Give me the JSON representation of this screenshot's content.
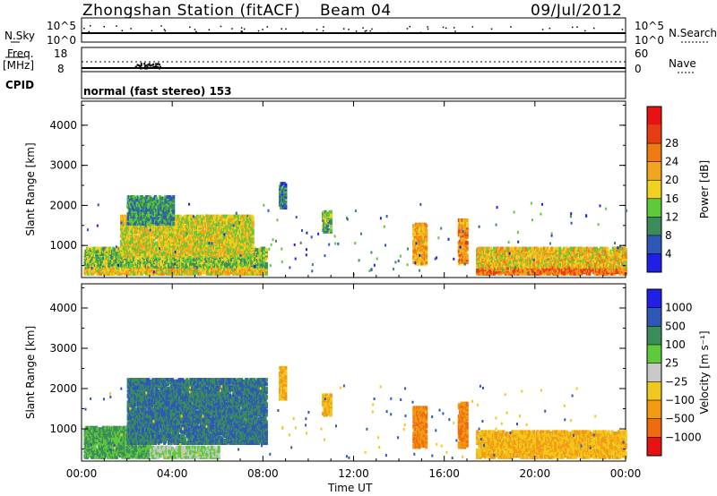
{
  "header": {
    "station": "Zhongshan Station (fitACF)",
    "beam": "Beam 04",
    "date": "09/Jul/2012"
  },
  "panels": {
    "nsky_label": "N.Sky",
    "nsky_ticks": [
      "10^5",
      "10^0"
    ],
    "nsearch_label": "N.Search",
    "nsearch_ticks": [
      "10^5",
      "10^0"
    ],
    "freq_label": "Freq.",
    "freq_unit": "[MHz]",
    "freq_ticks": [
      "18",
      "8"
    ],
    "nave_label": "Nave",
    "nave_ticks": [
      "60",
      "0"
    ],
    "cpid_label": "CPID",
    "cpid_text": "normal (fast stereo) 153"
  },
  "colors": {
    "power_scale": [
      "#1f1fe8",
      "#2e58b8",
      "#3a8c5a",
      "#5ec93a",
      "#f2d21f",
      "#f2a51f",
      "#f07a12",
      "#e83c12",
      "#e81212"
    ],
    "velocity_scale": [
      "#1f1fe8",
      "#2e58b8",
      "#3a8c5a",
      "#5ec93a",
      "#c8c8c8",
      "#f2c81f",
      "#f29b12",
      "#f06a12",
      "#e81212"
    ]
  },
  "chart_data": [
    {
      "type": "heatmap",
      "ylabel": "Slant Range [km]",
      "xlabel": "Time UT",
      "x_ticks": [
        "00:00",
        "04:00",
        "08:00",
        "12:00",
        "16:00",
        "20:00",
        "00:00"
      ],
      "y_ticks": [
        "1000",
        "2000",
        "3000",
        "4000"
      ],
      "xlim_hours": [
        0,
        24
      ],
      "ylim_km": [
        200,
        4600
      ],
      "colorbar": {
        "label": "Power [dB]",
        "ticks": [
          "4",
          "8",
          "12",
          "16",
          "20",
          "24",
          "28"
        ]
      },
      "regions": [
        {
          "t0": 0.1,
          "t1": 8.1,
          "r0": 250,
          "r1": 900,
          "val": 14
        },
        {
          "t0": 1.7,
          "t1": 7.5,
          "r0": 700,
          "r1": 1700,
          "val": 18
        },
        {
          "t0": 2.0,
          "t1": 4.0,
          "r0": 1500,
          "r1": 2200,
          "val": 10
        },
        {
          "t0": 8.7,
          "t1": 9.0,
          "r0": 1900,
          "r1": 2500,
          "val": 8
        },
        {
          "t0": 10.6,
          "t1": 11.0,
          "r0": 1300,
          "r1": 1800,
          "val": 12
        },
        {
          "t0": 14.6,
          "t1": 15.2,
          "r0": 500,
          "r1": 1500,
          "val": 22
        },
        {
          "t0": 16.6,
          "t1": 17.0,
          "r0": 500,
          "r1": 1600,
          "val": 24
        },
        {
          "t0": 17.4,
          "t1": 24.0,
          "r0": 250,
          "r1": 900,
          "val": 20
        }
      ]
    },
    {
      "type": "heatmap",
      "ylabel": "Slant Range [km]",
      "xlabel": "Time UT",
      "x_ticks": [
        "00:00",
        "04:00",
        "08:00",
        "12:00",
        "16:00",
        "20:00",
        "00:00"
      ],
      "y_ticks": [
        "1000",
        "2000",
        "3000",
        "4000"
      ],
      "xlim_hours": [
        0,
        24
      ],
      "ylim_km": [
        200,
        4600
      ],
      "colorbar": {
        "label": "Velocity [m s⁻¹]",
        "ticks": [
          "1000",
          "500",
          "100",
          "25",
          "−25",
          "−100",
          "−500",
          "−1000"
        ]
      },
      "regions": [
        {
          "t0": 0.1,
          "t1": 3.0,
          "r0": 250,
          "r1": 1000,
          "val": 100
        },
        {
          "t0": 2.0,
          "t1": 8.1,
          "r0": 600,
          "r1": 2200,
          "val": 500
        },
        {
          "t0": 3.0,
          "t1": 6.0,
          "r0": 250,
          "r1": 500,
          "val": 25
        },
        {
          "t0": 8.7,
          "t1": 9.0,
          "r0": 1700,
          "r1": 2500,
          "val": -100
        },
        {
          "t0": 10.6,
          "t1": 11.0,
          "r0": 1300,
          "r1": 1800,
          "val": -100
        },
        {
          "t0": 14.6,
          "t1": 15.2,
          "r0": 500,
          "r1": 1500,
          "val": -500
        },
        {
          "t0": 16.6,
          "t1": 17.0,
          "r0": 500,
          "r1": 1600,
          "val": -500
        },
        {
          "t0": 17.4,
          "t1": 24.0,
          "r0": 250,
          "r1": 900,
          "val": -100
        }
      ]
    }
  ]
}
